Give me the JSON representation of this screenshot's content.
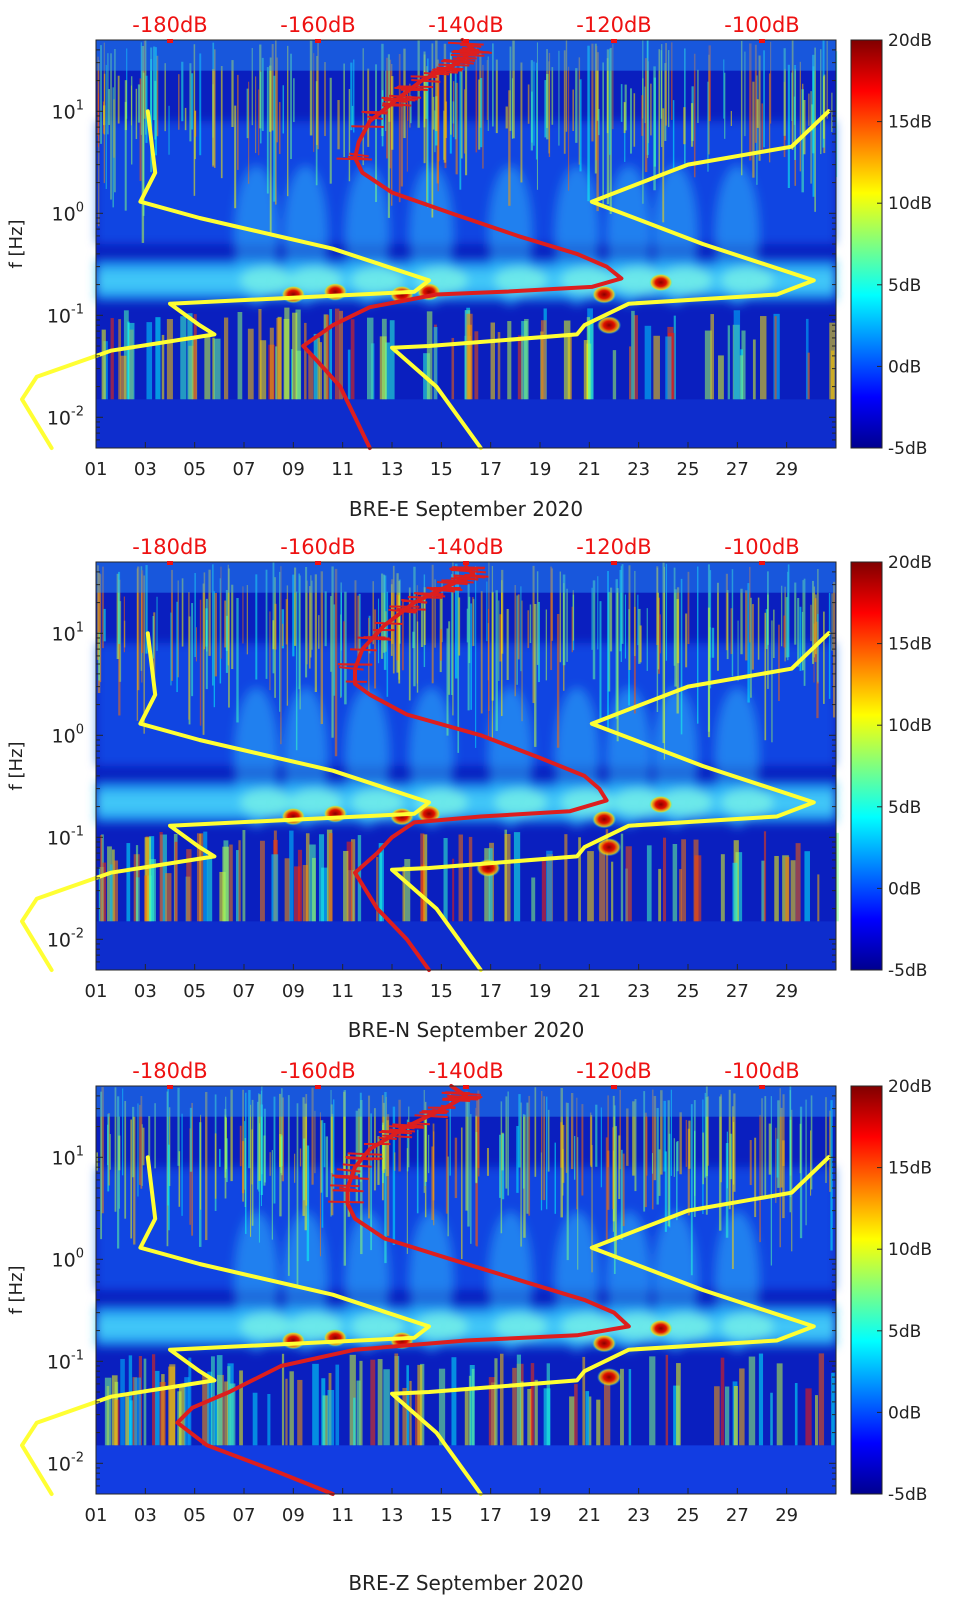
{
  "chart_data": [
    {
      "type": "heatmap",
      "title": "",
      "xlabel": "BRE-E September 2020",
      "ylabel": "f [Hz]",
      "yscale": "log",
      "ylim": [
        0.005,
        50
      ],
      "xlim": [
        1,
        31
      ],
      "x_ticks": [
        "01",
        "03",
        "05",
        "07",
        "09",
        "11",
        "13",
        "15",
        "17",
        "19",
        "21",
        "23",
        "25",
        "27",
        "29"
      ],
      "y_ticks": [
        "10^-2",
        "10^-1",
        "10^0",
        "10^1"
      ],
      "top_axis_ticks": [
        "-180dB",
        "-160dB",
        "-140dB",
        "-120dB",
        "-100dB"
      ],
      "top_axis_range_dB": [
        -190,
        -90
      ],
      "colorbar": {
        "ticks": [
          "20dB",
          "15dB",
          "10dB",
          "5dB",
          "0dB",
          "-5dB"
        ],
        "range": [
          -5,
          20
        ]
      },
      "series": [
        {
          "color": "#dd1e1e",
          "points": [
            [
              -140.5,
              50
            ],
            [
              -139,
              40
            ],
            [
              -141,
              30
            ],
            [
              -146,
              20
            ],
            [
              -150,
              12
            ],
            [
              -153,
              8
            ],
            [
              -154.5,
              5
            ],
            [
              -155,
              3.5
            ],
            [
              -154,
              2.5
            ],
            [
              -150,
              1.6
            ],
            [
              -142,
              1.0
            ],
            [
              -133,
              0.6
            ],
            [
              -125,
              0.4
            ],
            [
              -121,
              0.3
            ],
            [
              -119,
              0.23
            ],
            [
              -123,
              0.19
            ],
            [
              -135,
              0.17
            ],
            [
              -144,
              0.16
            ],
            [
              -153,
              0.12
            ],
            [
              -158,
              0.08
            ],
            [
              -162,
              0.05
            ],
            [
              -160,
              0.035
            ],
            [
              -157,
              0.02
            ],
            [
              -155,
              0.01
            ],
            [
              -153,
              0.005
            ]
          ]
        },
        {
          "color": "#ffff33",
          "points": [
            [
              -183,
              10
            ],
            [
              -182,
              2.5
            ],
            [
              -184,
              1.3
            ],
            [
              -176,
              0.9
            ],
            [
              -158,
              0.45
            ],
            [
              -145,
              0.22
            ],
            [
              -147,
              0.17
            ],
            [
              -180,
              0.13
            ],
            [
              -176,
              0.08
            ],
            [
              -174,
              0.065
            ],
            [
              -188,
              0.045
            ],
            [
              -198,
              0.025
            ],
            [
              -200,
              0.015
            ],
            [
              -196,
              0.005
            ]
          ]
        },
        {
          "color": "#ffff33",
          "points": [
            [
              -91,
              10
            ],
            [
              -96,
              4.5
            ],
            [
              -110,
              3
            ],
            [
              -123,
              1.3
            ],
            [
              -108,
              0.5
            ],
            [
              -93,
              0.22
            ],
            [
              -98,
              0.16
            ],
            [
              -118,
              0.13
            ],
            [
              -124,
              0.08
            ],
            [
              -125,
              0.065
            ],
            [
              -145,
              0.05
            ],
            [
              -150,
              0.048
            ],
            [
              -144,
              0.02
            ],
            [
              -138,
              0.005
            ]
          ]
        }
      ],
      "events": [
        {
          "x": 9.0,
          "f": 0.16
        },
        {
          "x": 10.7,
          "f": 0.17
        },
        {
          "x": 13.4,
          "f": 0.16
        },
        {
          "x": 14.5,
          "f": 0.17
        },
        {
          "x": 21.6,
          "f": 0.16
        },
        {
          "x": 21.8,
          "f": 0.08
        },
        {
          "x": 23.9,
          "f": 0.21
        }
      ]
    },
    {
      "type": "heatmap",
      "title": "",
      "xlabel": "BRE-N September 2020",
      "ylabel": "f [Hz]",
      "yscale": "log",
      "ylim": [
        0.005,
        50
      ],
      "xlim": [
        1,
        31
      ],
      "x_ticks": [
        "01",
        "03",
        "05",
        "07",
        "09",
        "11",
        "13",
        "15",
        "17",
        "19",
        "21",
        "23",
        "25",
        "27",
        "29"
      ],
      "y_ticks": [
        "10^-2",
        "10^-1",
        "10^0",
        "10^1"
      ],
      "top_axis_ticks": [
        "-180dB",
        "-160dB",
        "-140dB",
        "-120dB",
        "-100dB"
      ],
      "top_axis_range_dB": [
        -190,
        -90
      ],
      "colorbar": {
        "ticks": [
          "20dB",
          "15dB",
          "10dB",
          "5dB",
          "0dB",
          "-5dB"
        ],
        "range": [
          -5,
          20
        ]
      },
      "series": [
        {
          "color": "#dd1e1e",
          "points": [
            [
              -140,
              45
            ],
            [
              -139,
              38
            ],
            [
              -142,
              30
            ],
            [
              -147,
              20
            ],
            [
              -151,
              12
            ],
            [
              -154,
              7
            ],
            [
              -155,
              4.5
            ],
            [
              -155,
              3.2
            ],
            [
              -153,
              2.5
            ],
            [
              -148,
              1.6
            ],
            [
              -138,
              1.0
            ],
            [
              -130,
              0.6
            ],
            [
              -124,
              0.4
            ],
            [
              -122,
              0.3
            ],
            [
              -121,
              0.23
            ],
            [
              -126,
              0.18
            ],
            [
              -138,
              0.16
            ],
            [
              -147,
              0.14
            ],
            [
              -150,
              0.1
            ],
            [
              -152,
              0.07
            ],
            [
              -155,
              0.045
            ],
            [
              -152,
              0.02
            ],
            [
              -148,
              0.01
            ],
            [
              -145,
              0.005
            ]
          ]
        },
        {
          "color": "#ffff33",
          "points": [
            [
              -183,
              10
            ],
            [
              -182,
              2.5
            ],
            [
              -184,
              1.3
            ],
            [
              -176,
              0.9
            ],
            [
              -158,
              0.45
            ],
            [
              -145,
              0.22
            ],
            [
              -147,
              0.17
            ],
            [
              -180,
              0.13
            ],
            [
              -176,
              0.08
            ],
            [
              -174,
              0.065
            ],
            [
              -188,
              0.045
            ],
            [
              -198,
              0.025
            ],
            [
              -200,
              0.015
            ],
            [
              -196,
              0.005
            ]
          ]
        },
        {
          "color": "#ffff33",
          "points": [
            [
              -91,
              10
            ],
            [
              -96,
              4.5
            ],
            [
              -110,
              3
            ],
            [
              -123,
              1.3
            ],
            [
              -108,
              0.5
            ],
            [
              -93,
              0.22
            ],
            [
              -98,
              0.16
            ],
            [
              -118,
              0.13
            ],
            [
              -124,
              0.08
            ],
            [
              -125,
              0.065
            ],
            [
              -145,
              0.05
            ],
            [
              -150,
              0.048
            ],
            [
              -144,
              0.02
            ],
            [
              -138,
              0.005
            ]
          ]
        }
      ],
      "events": [
        {
          "x": 9.0,
          "f": 0.16
        },
        {
          "x": 10.7,
          "f": 0.17
        },
        {
          "x": 13.4,
          "f": 0.16
        },
        {
          "x": 14.5,
          "f": 0.17
        },
        {
          "x": 21.6,
          "f": 0.15
        },
        {
          "x": 21.8,
          "f": 0.08
        },
        {
          "x": 23.9,
          "f": 0.21
        },
        {
          "x": 16.9,
          "f": 0.05
        }
      ]
    },
    {
      "type": "heatmap",
      "title": "",
      "xlabel": "BRE-Z September 2020",
      "ylabel": "f [Hz]",
      "yscale": "log",
      "ylim": [
        0.005,
        50
      ],
      "xlim": [
        1,
        31
      ],
      "x_ticks": [
        "01",
        "03",
        "05",
        "07",
        "09",
        "11",
        "13",
        "15",
        "17",
        "19",
        "21",
        "23",
        "25",
        "27",
        "29"
      ],
      "y_ticks": [
        "10^-2",
        "10^-1",
        "10^0",
        "10^1"
      ],
      "top_axis_ticks": [
        "-180dB",
        "-160dB",
        "-140dB",
        "-120dB",
        "-100dB"
      ],
      "top_axis_range_dB": [
        -190,
        -90
      ],
      "colorbar": {
        "ticks": [
          "20dB",
          "15dB",
          "10dB",
          "5dB",
          "0dB",
          "-5dB"
        ],
        "range": [
          -5,
          20
        ]
      },
      "series": [
        {
          "color": "#dd1e1e",
          "points": [
            [
              -142,
              50
            ],
            [
              -140,
              40
            ],
            [
              -143,
              30
            ],
            [
              -148,
              20
            ],
            [
              -153,
              12
            ],
            [
              -155,
              8
            ],
            [
              -156,
              5
            ],
            [
              -156,
              3.5
            ],
            [
              -155,
              2.5
            ],
            [
              -151,
              1.6
            ],
            [
              -142,
              1.0
            ],
            [
              -132,
              0.6
            ],
            [
              -124,
              0.4
            ],
            [
              -120,
              0.3
            ],
            [
              -118,
              0.22
            ],
            [
              -125,
              0.18
            ],
            [
              -140,
              0.16
            ],
            [
              -155,
              0.13
            ],
            [
              -165,
              0.09
            ],
            [
              -172,
              0.05
            ],
            [
              -177,
              0.035
            ],
            [
              -179,
              0.025
            ],
            [
              -175,
              0.015
            ],
            [
              -165,
              0.008
            ],
            [
              -158,
              0.005
            ]
          ]
        },
        {
          "color": "#ffff33",
          "points": [
            [
              -183,
              10
            ],
            [
              -182,
              2.5
            ],
            [
              -184,
              1.3
            ],
            [
              -176,
              0.9
            ],
            [
              -158,
              0.45
            ],
            [
              -145,
              0.22
            ],
            [
              -147,
              0.17
            ],
            [
              -180,
              0.13
            ],
            [
              -176,
              0.08
            ],
            [
              -174,
              0.065
            ],
            [
              -188,
              0.045
            ],
            [
              -198,
              0.025
            ],
            [
              -200,
              0.015
            ],
            [
              -196,
              0.005
            ]
          ]
        },
        {
          "color": "#ffff33",
          "points": [
            [
              -91,
              10
            ],
            [
              -96,
              4.5
            ],
            [
              -110,
              3
            ],
            [
              -123,
              1.3
            ],
            [
              -108,
              0.5
            ],
            [
              -93,
              0.22
            ],
            [
              -98,
              0.16
            ],
            [
              -118,
              0.13
            ],
            [
              -124,
              0.08
            ],
            [
              -125,
              0.065
            ],
            [
              -145,
              0.05
            ],
            [
              -150,
              0.048
            ],
            [
              -144,
              0.02
            ],
            [
              -138,
              0.005
            ]
          ]
        }
      ],
      "events": [
        {
          "x": 9.0,
          "f": 0.16
        },
        {
          "x": 10.7,
          "f": 0.17
        },
        {
          "x": 13.4,
          "f": 0.16
        },
        {
          "x": 21.6,
          "f": 0.15
        },
        {
          "x": 21.8,
          "f": 0.07
        },
        {
          "x": 23.9,
          "f": 0.21
        }
      ]
    }
  ]
}
